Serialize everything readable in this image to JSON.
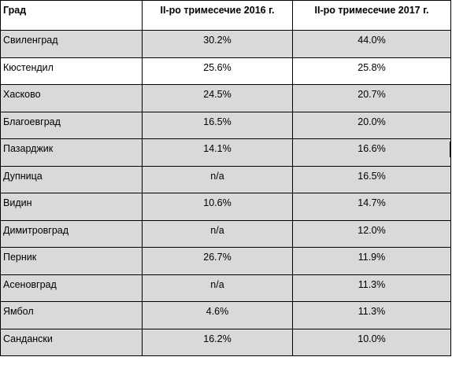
{
  "table": {
    "headers": [
      "Град",
      "II-ро тримесечие 2016 г.",
      "II-ро тримесечие 2017 г."
    ],
    "rows": [
      {
        "city": "Свиленград",
        "q2_2016": "30.2%",
        "q2_2017": "44.0%",
        "shaded": true
      },
      {
        "city": "Кюстендил",
        "q2_2016": "25.6%",
        "q2_2017": "25.8%",
        "shaded": false
      },
      {
        "city": "Хасково",
        "q2_2016": "24.5%",
        "q2_2017": "20.7%",
        "shaded": true
      },
      {
        "city": "Благоевград",
        "q2_2016": "16.5%",
        "q2_2017": "20.0%",
        "shaded": true
      },
      {
        "city": "Пазарджик",
        "q2_2016": "14.1%",
        "q2_2017": "16.6%",
        "shaded": true
      },
      {
        "city": "Дупница",
        "q2_2016": "n/a",
        "q2_2017": "16.5%",
        "shaded": true
      },
      {
        "city": "Видин",
        "q2_2016": "10.6%",
        "q2_2017": "14.7%",
        "shaded": true
      },
      {
        "city": "Димитровград",
        "q2_2016": "n/a",
        "q2_2017": "12.0%",
        "shaded": true
      },
      {
        "city": "Перник",
        "q2_2016": "26.7%",
        "q2_2017": "11.9%",
        "shaded": true
      },
      {
        "city": "Асеновград",
        "q2_2016": "n/a",
        "q2_2017": "11.3%",
        "shaded": true
      },
      {
        "city": "Ямбол",
        "q2_2016": "4.6%",
        "q2_2017": "11.3%",
        "shaded": true
      },
      {
        "city": "Сандански",
        "q2_2016": "16.2%",
        "q2_2017": "10.0%",
        "shaded": true
      }
    ]
  },
  "colors": {
    "row_shade": "#d9d9d9",
    "row_white": "#ffffff",
    "border": "#000000"
  }
}
